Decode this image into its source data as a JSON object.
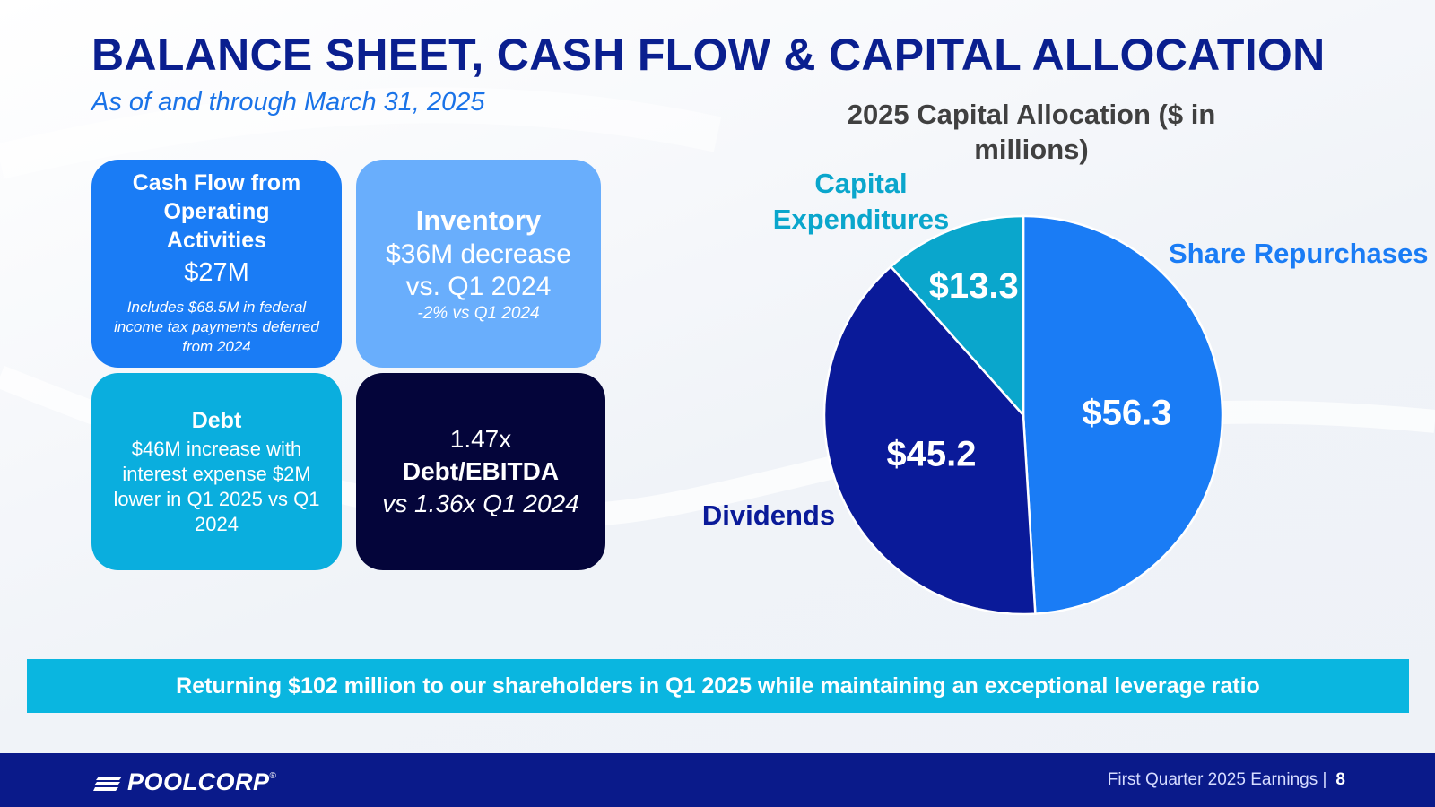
{
  "header": {
    "title": "BALANCE SHEET, CASH FLOW & CAPITAL ALLOCATION",
    "subtitle": "As of and through March 31, 2025"
  },
  "cards": {
    "cash_flow": {
      "title": "Cash Flow from Operating Activities",
      "value": "$27M",
      "note": "Includes $68.5M in federal income tax payments deferred from 2024"
    },
    "inventory": {
      "title": "Inventory",
      "value": "$36M decrease vs. Q1 2024",
      "note": "-2% vs Q1 2024"
    },
    "debt": {
      "title": "Debt",
      "text": "$46M increase with interest expense $2M lower in Q1 2025 vs Q1 2024"
    },
    "leverage": {
      "value": "1.47x",
      "label": "Debt/EBITDA",
      "comparison": "vs 1.36x Q1 2024"
    }
  },
  "chart_data": {
    "type": "pie",
    "title": "2025 Capital Allocation ($ in millions)",
    "slices": [
      {
        "label": "Share Repurchases",
        "value": 56.3,
        "display": "$56.3",
        "color": "#1a7cf5",
        "label_color": "#1a7cf5"
      },
      {
        "label": "Dividends",
        "value": 45.2,
        "display": "$45.2",
        "color": "#0a1a99",
        "label_color": "#0a1a99"
      },
      {
        "label": "Capital Expenditures",
        "value": 13.3,
        "display": "$13.3",
        "color": "#0aa6cc",
        "label_color": "#0aa6cc"
      }
    ]
  },
  "banner": {
    "text": "Returning $102 million to our shareholders in Q1 2025 while maintaining an exceptional leverage ratio"
  },
  "footer": {
    "logo_text": "POOLCORP",
    "logo_mark": "®",
    "caption": "First Quarter 2025 Earnings |",
    "page": "8"
  },
  "colors": {
    "title": "#0a1f8f",
    "subtitle": "#1a73e8",
    "footer": "#0a1a8a",
    "banner": "#0ab6e0"
  }
}
